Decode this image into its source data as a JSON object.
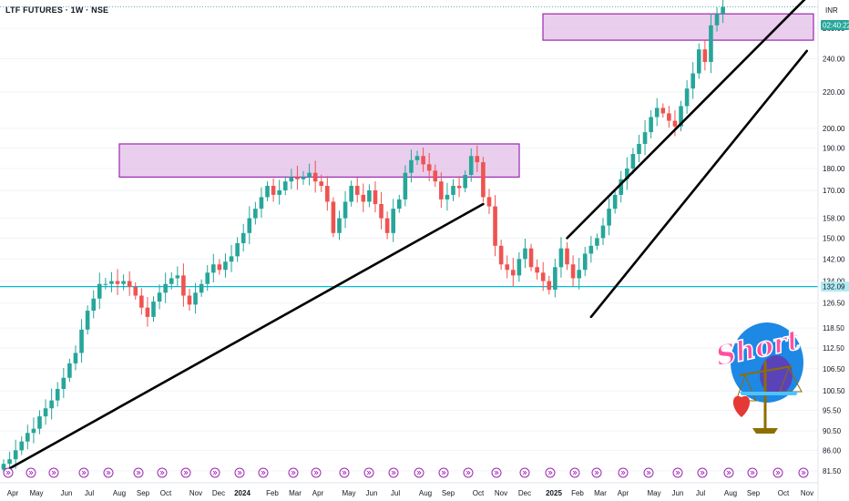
{
  "header": {
    "title": "LTF FUTURES · 1W · NSE",
    "currency": "INR"
  },
  "price_tags": {
    "current": "02:40:22",
    "level": "132.09"
  },
  "sticker": {
    "text": "Short"
  },
  "colors": {
    "up": "#26a69a",
    "down": "#ef5350",
    "zone_fill": "#e1bee7",
    "zone_stroke": "#9c27b0",
    "level_line": "#00bcd4",
    "trendline": "#000000",
    "event_icon": "#9c27b0",
    "price_tag_bg": "#26a69a"
  },
  "chart_data": {
    "type": "candlestick",
    "title": "LTF FUTURES · 1W · NSE",
    "y_axis": {
      "scale": "log",
      "ticks": [
        "81.50",
        "86.00",
        "90.50",
        "95.50",
        "100.50",
        "106.50",
        "112.50",
        "118.50",
        "126.50",
        "134.00",
        "142.00",
        "150.00",
        "158.00",
        "170.00",
        "180.00",
        "190.00",
        "200.00",
        "220.00",
        "240.00",
        "260.00"
      ],
      "range": [
        80.5,
        276
      ]
    },
    "x_axis": {
      "ticks": [
        "Apr",
        "May",
        "Jun",
        "Jul",
        "Aug",
        "Sep",
        "Oct",
        "Nov",
        "Dec",
        "2024",
        "Feb",
        "Mar",
        "Apr",
        "May",
        "Jun",
        "Jul",
        "Aug",
        "Sep",
        "Oct",
        "Nov",
        "Dec",
        "2025",
        "Feb",
        "Mar",
        "Apr",
        "May",
        "Jun",
        "Jul",
        "Aug",
        "Sep",
        "Oct",
        "Nov"
      ],
      "bold_ticks": [
        "2024",
        "2025"
      ]
    },
    "weekly_closes": [
      83,
      84,
      86,
      88,
      90,
      91,
      94,
      96,
      98,
      101,
      104,
      108,
      111,
      118,
      124,
      128,
      133,
      133,
      134,
      133,
      134,
      132,
      129,
      125,
      122,
      127,
      130,
      133,
      135,
      136,
      129,
      126,
      130,
      133,
      137,
      140,
      138,
      141,
      143,
      148,
      152,
      158,
      162,
      167,
      172,
      168,
      170,
      174,
      176,
      175,
      176,
      178,
      174,
      172,
      165,
      152,
      158,
      165,
      172,
      168,
      165,
      170,
      164,
      158,
      152,
      162,
      166,
      178,
      184,
      186,
      182,
      179,
      174,
      166,
      168,
      172,
      171,
      177,
      186,
      183,
      167,
      163,
      147,
      140,
      138,
      136,
      142,
      146,
      139,
      137,
      134,
      131,
      139,
      146,
      140,
      135,
      138,
      144,
      147,
      150,
      155,
      162,
      168,
      175,
      180,
      187,
      192,
      198,
      206,
      211,
      208,
      204,
      201,
      212,
      222,
      231,
      246,
      238,
      262,
      270,
      275
    ],
    "zones": [
      {
        "price_low": 176,
        "price_high": 192
      },
      {
        "price_low": 252,
        "price_high": 270
      }
    ],
    "level_line": 132.09,
    "trendlines": [
      {
        "from": {
          "week": 1,
          "price": 82
        },
        "to": {
          "week": 80,
          "price": 164
        }
      },
      {
        "from": {
          "week": 94,
          "price": 150
        },
        "to": {
          "week": 134,
          "price": 282
        }
      },
      {
        "from": {
          "week": 98,
          "price": 122
        },
        "to": {
          "week": 134,
          "price": 245
        }
      }
    ]
  }
}
